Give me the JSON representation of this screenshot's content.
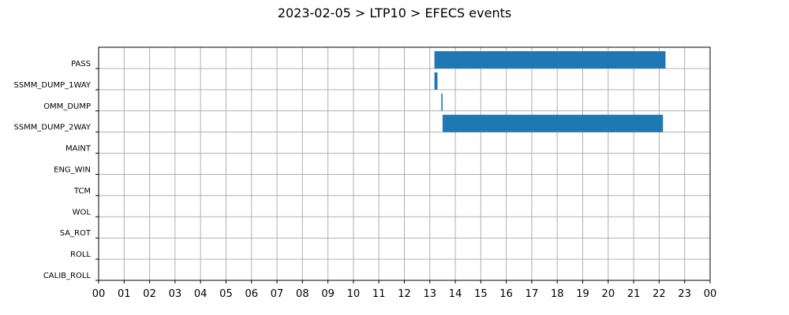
{
  "chart_data": {
    "type": "gantt",
    "title": "2023-02-05 > LTP10 > EFECS events",
    "xlabel": "",
    "ylabel": "",
    "xlim": [
      0,
      24
    ],
    "x_tick_labels": [
      "00",
      "01",
      "02",
      "03",
      "04",
      "05",
      "06",
      "07",
      "08",
      "09",
      "10",
      "11",
      "12",
      "13",
      "14",
      "15",
      "16",
      "17",
      "18",
      "19",
      "20",
      "21",
      "22",
      "23",
      "00"
    ],
    "categories": [
      "PASS",
      "SSMM_DUMP_1WAY",
      "OMM_DUMP",
      "SSMM_DUMP_2WAY",
      "MAINT",
      "ENG_WIN",
      "TCM",
      "WOL",
      "SA_ROT",
      "ROLL",
      "CALIB_ROLL"
    ],
    "grid": true,
    "bar_color": "#1f77b4",
    "events": [
      {
        "category": "PASS",
        "start": 13.18,
        "end": 22.25
      },
      {
        "category": "SSMM_DUMP_1WAY",
        "start": 13.18,
        "end": 13.3
      },
      {
        "category": "OMM_DUMP",
        "start": 13.45,
        "end": 13.5
      },
      {
        "category": "SSMM_DUMP_2WAY",
        "start": 13.5,
        "end": 22.15
      }
    ]
  }
}
